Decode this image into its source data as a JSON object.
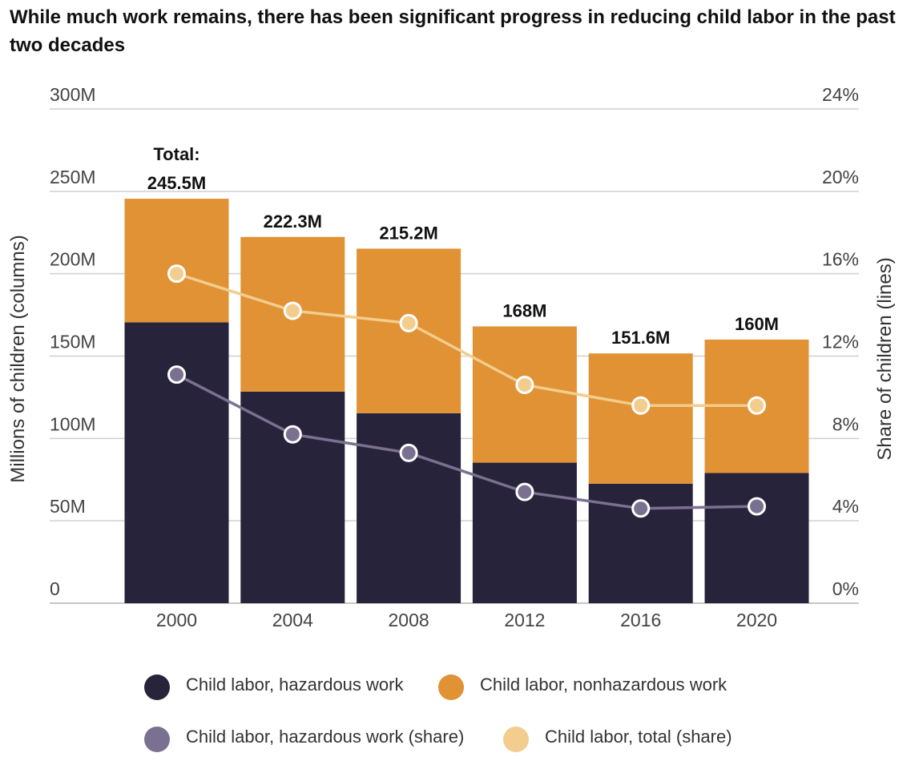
{
  "chart_data": {
    "type": "bar",
    "title": "While much work remains, there has been significant progress in reducing child labor in the past two decades",
    "categories": [
      "2000",
      "2004",
      "2008",
      "2012",
      "2016",
      "2020"
    ],
    "left_axis": {
      "label": "Millions of children (columns)",
      "range": [
        0,
        300
      ],
      "ticks": [
        0,
        50,
        100,
        150,
        200,
        250,
        300
      ],
      "tick_labels": [
        "0",
        "50M",
        "100M",
        "150M",
        "200M",
        "250M",
        "300M"
      ]
    },
    "right_axis": {
      "label": "Share of children (lines)",
      "range": [
        0,
        24
      ],
      "ticks": [
        0,
        4,
        8,
        12,
        16,
        20,
        24
      ],
      "tick_labels": [
        "0%",
        "4%",
        "8%",
        "12%",
        "16%",
        "20%",
        "24%"
      ]
    },
    "grid": true,
    "stacked_series": [
      {
        "name": "Child labor, hazardous work",
        "color": "#27233a",
        "values": [
          170.5,
          128.4,
          115.3,
          85.3,
          72.5,
          79.0
        ]
      },
      {
        "name": "Child labor, nonhazardous work",
        "color": "#e09235",
        "values": [
          75.0,
          93.9,
          99.9,
          82.7,
          79.1,
          81.0
        ]
      }
    ],
    "line_series": [
      {
        "name": "Child labor, hazardous work (share)",
        "color": "#7a7190",
        "axis": "right",
        "values": [
          11.1,
          8.2,
          7.3,
          5.4,
          4.6,
          4.7
        ]
      },
      {
        "name": "Child labor, total (share)",
        "color": "#f2cd8d",
        "axis": "right",
        "values": [
          16.0,
          14.2,
          13.6,
          10.6,
          9.6,
          9.6
        ]
      }
    ],
    "total_prefix": "Total:",
    "total_labels": [
      "245.5M",
      "222.3M",
      "215.2M",
      "168M",
      "151.6M",
      "160M"
    ],
    "legend": {
      "placement": "bottom"
    }
  }
}
